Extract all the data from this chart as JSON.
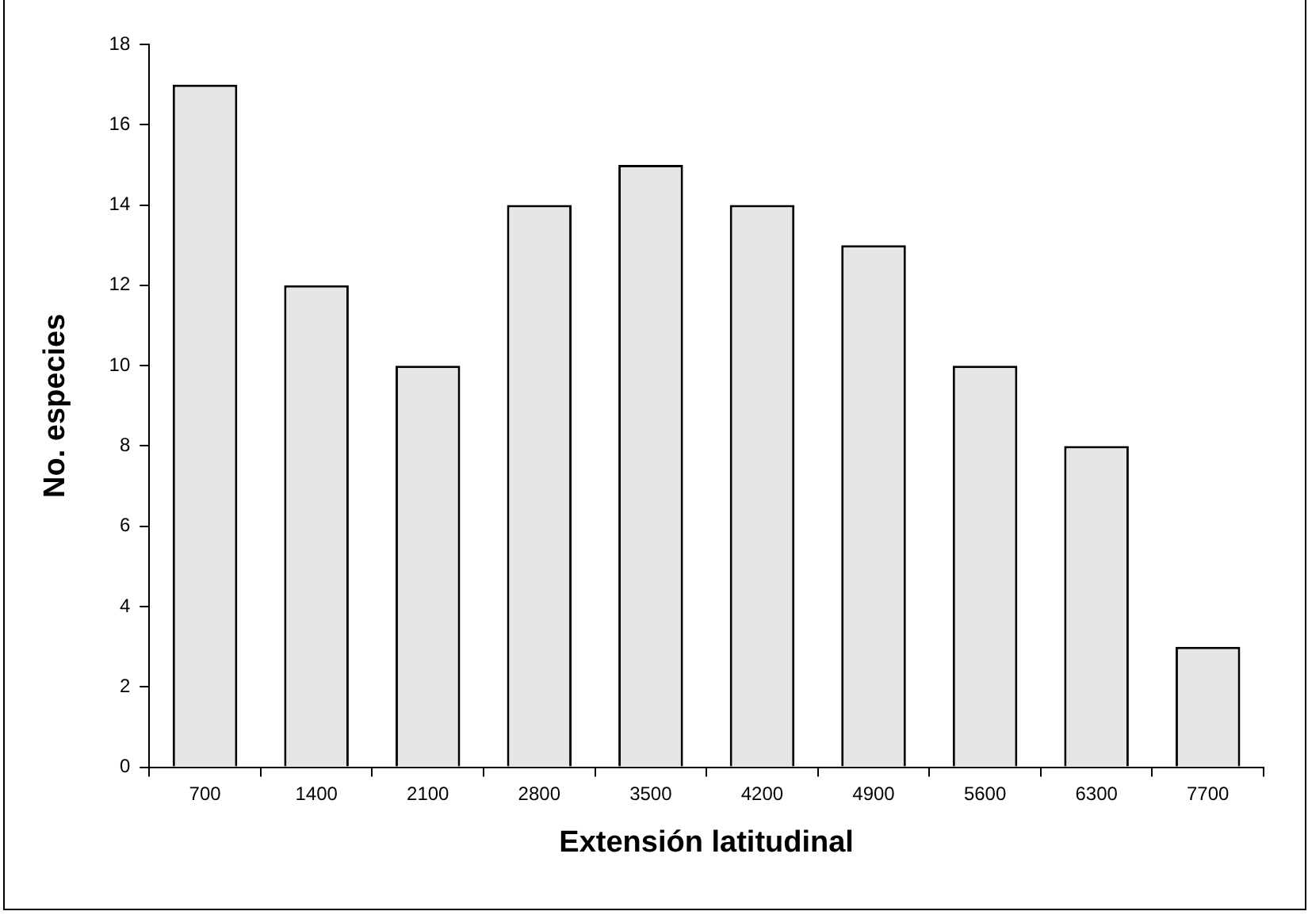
{
  "chart_data": {
    "type": "bar",
    "xlabel": "Extensión latitudinal",
    "ylabel": "No. especies",
    "categories": [
      "700",
      "1400",
      "2100",
      "2800",
      "3500",
      "4200",
      "4900",
      "5600",
      "6300",
      "7700"
    ],
    "values": [
      17,
      12,
      10,
      14,
      15,
      14,
      13,
      10,
      8,
      3
    ],
    "color": "#e6e6e6",
    "ylim": [
      0,
      18
    ],
    "yticks": [
      0,
      2,
      4,
      6,
      8,
      10,
      12,
      14,
      16,
      18
    ],
    "grid": false,
    "legend": false
  }
}
